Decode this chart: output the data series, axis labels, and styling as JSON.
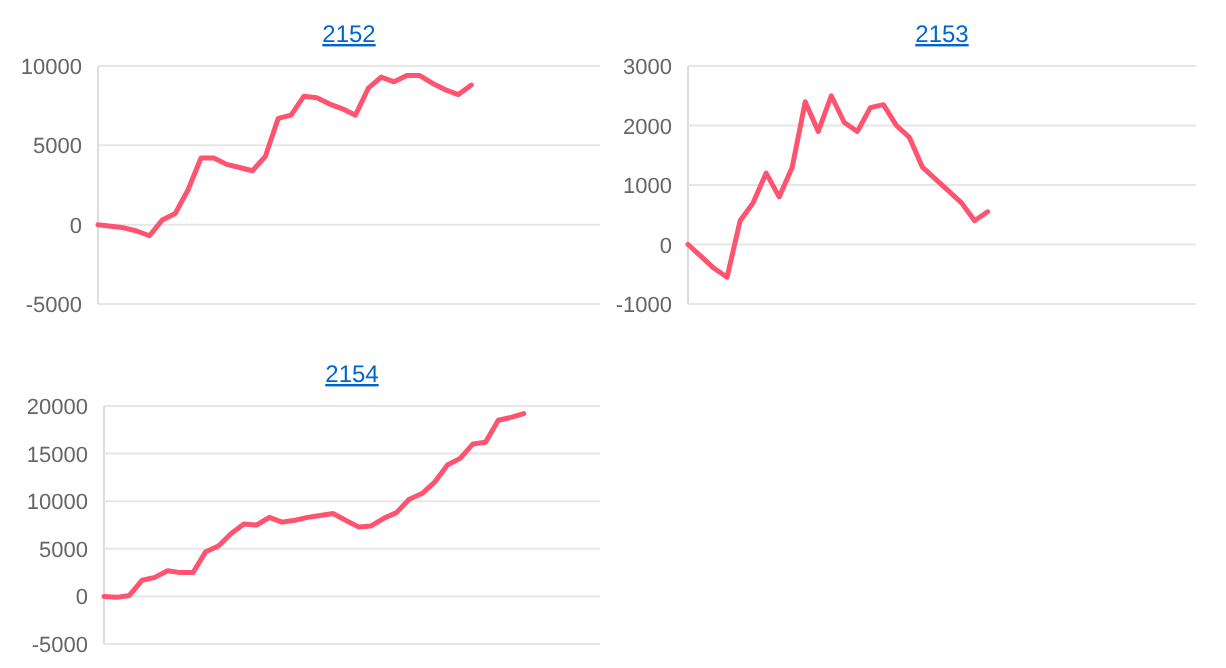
{
  "chart_data": [
    {
      "type": "line",
      "title": "2152",
      "categories": [
        null,
        null,
        null,
        null,
        null,
        null,
        null,
        null,
        null,
        null,
        null,
        null,
        null,
        null,
        null,
        null,
        null,
        null,
        null,
        null,
        null,
        null,
        null,
        null,
        null,
        null,
        null,
        null,
        null,
        null,
        null,
        null,
        null,
        null,
        null,
        null,
        null,
        null,
        null,
        null
      ],
      "series": [
        {
          "color": "#ff5470",
          "values": [
            0,
            -100,
            -200,
            -400,
            -700,
            300,
            700,
            2200,
            4200,
            4200,
            3800,
            3600,
            3400,
            4300,
            6700,
            6900,
            8100,
            8000,
            7600,
            7300,
            6900,
            8600,
            9300,
            9000,
            9400,
            9400,
            8900,
            8500,
            8200,
            8800,
            null,
            null,
            null,
            null,
            null,
            null,
            null,
            null,
            null,
            null
          ]
        }
      ],
      "ylim": [
        -5000,
        10000
      ],
      "yticks": [
        -5000,
        0,
        5000,
        10000
      ],
      "grid": "y"
    },
    {
      "type": "line",
      "title": "2153",
      "categories": [
        null,
        null,
        null,
        null,
        null,
        null,
        null,
        null,
        null,
        null,
        null,
        null,
        null,
        null,
        null,
        null,
        null,
        null,
        null,
        null,
        null,
        null,
        null,
        null,
        null,
        null,
        null,
        null,
        null,
        null,
        null,
        null,
        null,
        null,
        null,
        null,
        null,
        null,
        null,
        null
      ],
      "series": [
        {
          "color": "#ff5470",
          "values": [
            0,
            -200,
            -400,
            -550,
            400,
            700,
            1200,
            800,
            1300,
            2400,
            1900,
            2500,
            2050,
            1900,
            2300,
            2350,
            2000,
            1800,
            1300,
            1100,
            900,
            700,
            400,
            550,
            null,
            null,
            null,
            null,
            null,
            null,
            null,
            null,
            null,
            null,
            null,
            null,
            null,
            null,
            null,
            null
          ]
        }
      ],
      "ylim": [
        -1000,
        3000
      ],
      "yticks": [
        -1000,
        0,
        1000,
        2000,
        3000
      ],
      "grid": "y"
    },
    {
      "type": "line",
      "title": "2154",
      "categories": [
        null,
        null,
        null,
        null,
        null,
        null,
        null,
        null,
        null,
        null,
        null,
        null,
        null,
        null,
        null,
        null,
        null,
        null,
        null,
        null,
        null,
        null,
        null,
        null,
        null,
        null,
        null,
        null,
        null,
        null,
        null,
        null,
        null,
        null,
        null,
        null,
        null,
        null,
        null,
        null
      ],
      "series": [
        {
          "color": "#ff5470",
          "values": [
            0,
            -100,
            100,
            1700,
            2000,
            2700,
            2500,
            2500,
            4700,
            5300,
            6600,
            7600,
            7500,
            8300,
            7800,
            8000,
            8300,
            8500,
            8700,
            8000,
            7300,
            7400,
            8200,
            8800,
            10200,
            10800,
            12000,
            13800,
            14500,
            16000,
            16200,
            18500,
            18800,
            19200,
            null,
            null,
            null,
            null,
            null,
            null
          ]
        }
      ],
      "ylim": [
        -5000,
        20000
      ],
      "yticks": [
        -5000,
        0,
        5000,
        10000,
        15000,
        20000
      ],
      "grid": "y"
    }
  ]
}
